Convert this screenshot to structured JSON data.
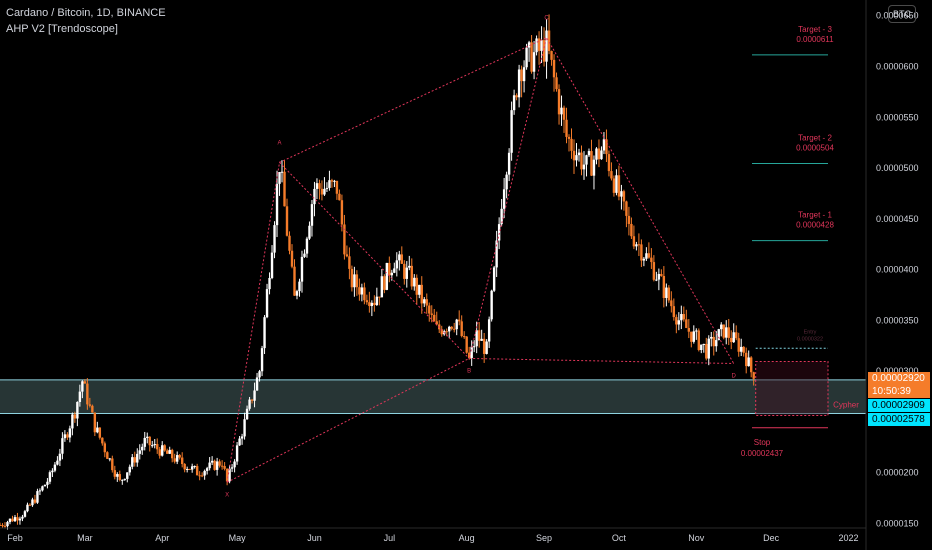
{
  "header": {
    "title": "Cardano / Bitcoin, 1D, BINANCE",
    "indicator": "AHP V2 [Trendoscope]"
  },
  "currency_button": "BTC",
  "price_boxes": {
    "last_price": "0.00002920",
    "countdown": "10:50:39",
    "zone_top": "0.00002909",
    "zone_bottom": "0.00002578"
  },
  "colors": {
    "background": "#000000",
    "bull_candle": "#ffffff",
    "bear_candle": "#f57c2a",
    "zone_fill": "#2e3e3e",
    "zone_border": "#8fd3e0",
    "pattern_line": "#e0365a",
    "target_line": "#26a69a",
    "last_price_box": "#f57c2a",
    "zone_box": "#00e5ff"
  },
  "chart_data": {
    "type": "candlestick",
    "title": "Cardano / Bitcoin, 1D, BINANCE",
    "xlabel": "",
    "ylabel": "",
    "ylim": [
      1.45e-05,
      6.65e-05
    ],
    "grid": false,
    "x_ticks": [
      "Feb",
      "Mar",
      "Apr",
      "May",
      "Jun",
      "Jul",
      "Aug",
      "Sep",
      "Oct",
      "Nov",
      "Dec",
      "2022"
    ],
    "y_ticks": [
      "0.0000150",
      "0.0000200",
      "0.0000250",
      "0.0000300",
      "0.0000350",
      "0.0000400",
      "0.0000450",
      "0.0000500",
      "0.0000550",
      "0.0000600",
      "0.0000650"
    ],
    "y_tick_values": [
      1.5e-05,
      2e-05,
      2.5e-05,
      3e-05,
      3.5e-05,
      4e-05,
      4.5e-05,
      5e-05,
      5.5e-05,
      6e-05,
      6.5e-05
    ],
    "x_start": "2021-01-26",
    "x_end": "2022-01-08",
    "anchors": [
      [
        "2021-01-26",
        1.48e-05
      ],
      [
        "2021-02-05",
        1.6e-05
      ],
      [
        "2021-02-15",
        1.95e-05
      ],
      [
        "2021-02-25",
        2.6e-05
      ],
      [
        "2021-02-28",
        2.9e-05
      ],
      [
        "2021-03-05",
        2.45e-05
      ],
      [
        "2021-03-15",
        1.9e-05
      ],
      [
        "2021-03-25",
        2.3e-05
      ],
      [
        "2021-04-05",
        2.15e-05
      ],
      [
        "2021-04-15",
        2e-05
      ],
      [
        "2021-04-25",
        2.1e-05
      ],
      [
        "2021-04-27",
        1.9e-05
      ],
      [
        "2021-05-03",
        2.4e-05
      ],
      [
        "2021-05-10",
        3e-05
      ],
      [
        "2021-05-18",
        5.05e-05
      ],
      [
        "2021-05-24",
        3.7e-05
      ],
      [
        "2021-06-01",
        4.8e-05
      ],
      [
        "2021-06-10",
        4.8e-05
      ],
      [
        "2021-06-15",
        3.9e-05
      ],
      [
        "2021-06-25",
        3.7e-05
      ],
      [
        "2021-07-03",
        4.1e-05
      ],
      [
        "2021-07-10",
        3.9e-05
      ],
      [
        "2021-07-20",
        3.4e-05
      ],
      [
        "2021-07-28",
        3.5e-05
      ],
      [
        "2021-08-02",
        3.1e-05
      ],
      [
        "2021-08-05",
        3.35e-05
      ],
      [
        "2021-08-09",
        3.2e-05
      ],
      [
        "2021-08-15",
        4.7e-05
      ],
      [
        "2021-08-22",
        6e-05
      ],
      [
        "2021-09-02",
        6.2e-05
      ],
      [
        "2021-09-10",
        5.3e-05
      ],
      [
        "2021-09-18",
        5e-05
      ],
      [
        "2021-09-25",
        5.2e-05
      ],
      [
        "2021-10-05",
        4.4e-05
      ],
      [
        "2021-10-15",
        4e-05
      ],
      [
        "2021-10-25",
        3.5e-05
      ],
      [
        "2021-11-05",
        3.2e-05
      ],
      [
        "2021-11-12",
        3.4e-05
      ],
      [
        "2021-11-20",
        3.2e-05
      ],
      [
        "2021-11-24",
        2.92e-05
      ]
    ],
    "pattern": {
      "name": "Cypher",
      "points": [
        {
          "label": "X",
          "date": "2021-04-27",
          "price": 1.9e-05
        },
        {
          "label": "A",
          "date": "2021-05-18",
          "price": 5.05e-05
        },
        {
          "label": "B",
          "date": "2021-08-02",
          "price": 3.12e-05
        },
        {
          "label": "C",
          "date": "2021-09-02",
          "price": 6.28e-05
        },
        {
          "label": "D",
          "date": "2021-11-16",
          "price": 3.07e-05
        }
      ],
      "zone": {
        "top": 2.909e-05,
        "bottom": 2.578e-05
      },
      "entry_label": "Entry",
      "entry_value": "0.0000322",
      "targets": [
        {
          "label": "Target - 1",
          "value": "0.0000428",
          "price": 4.28e-05
        },
        {
          "label": "Target - 2",
          "value": "0.0000504",
          "price": 5.04e-05
        },
        {
          "label": "Target - 3",
          "value": "0.0000611",
          "price": 6.11e-05
        }
      ],
      "stop": {
        "label": "Stop",
        "value": "0.00002437",
        "price": 2.437e-05
      },
      "pattern_label": "Cypher"
    }
  }
}
